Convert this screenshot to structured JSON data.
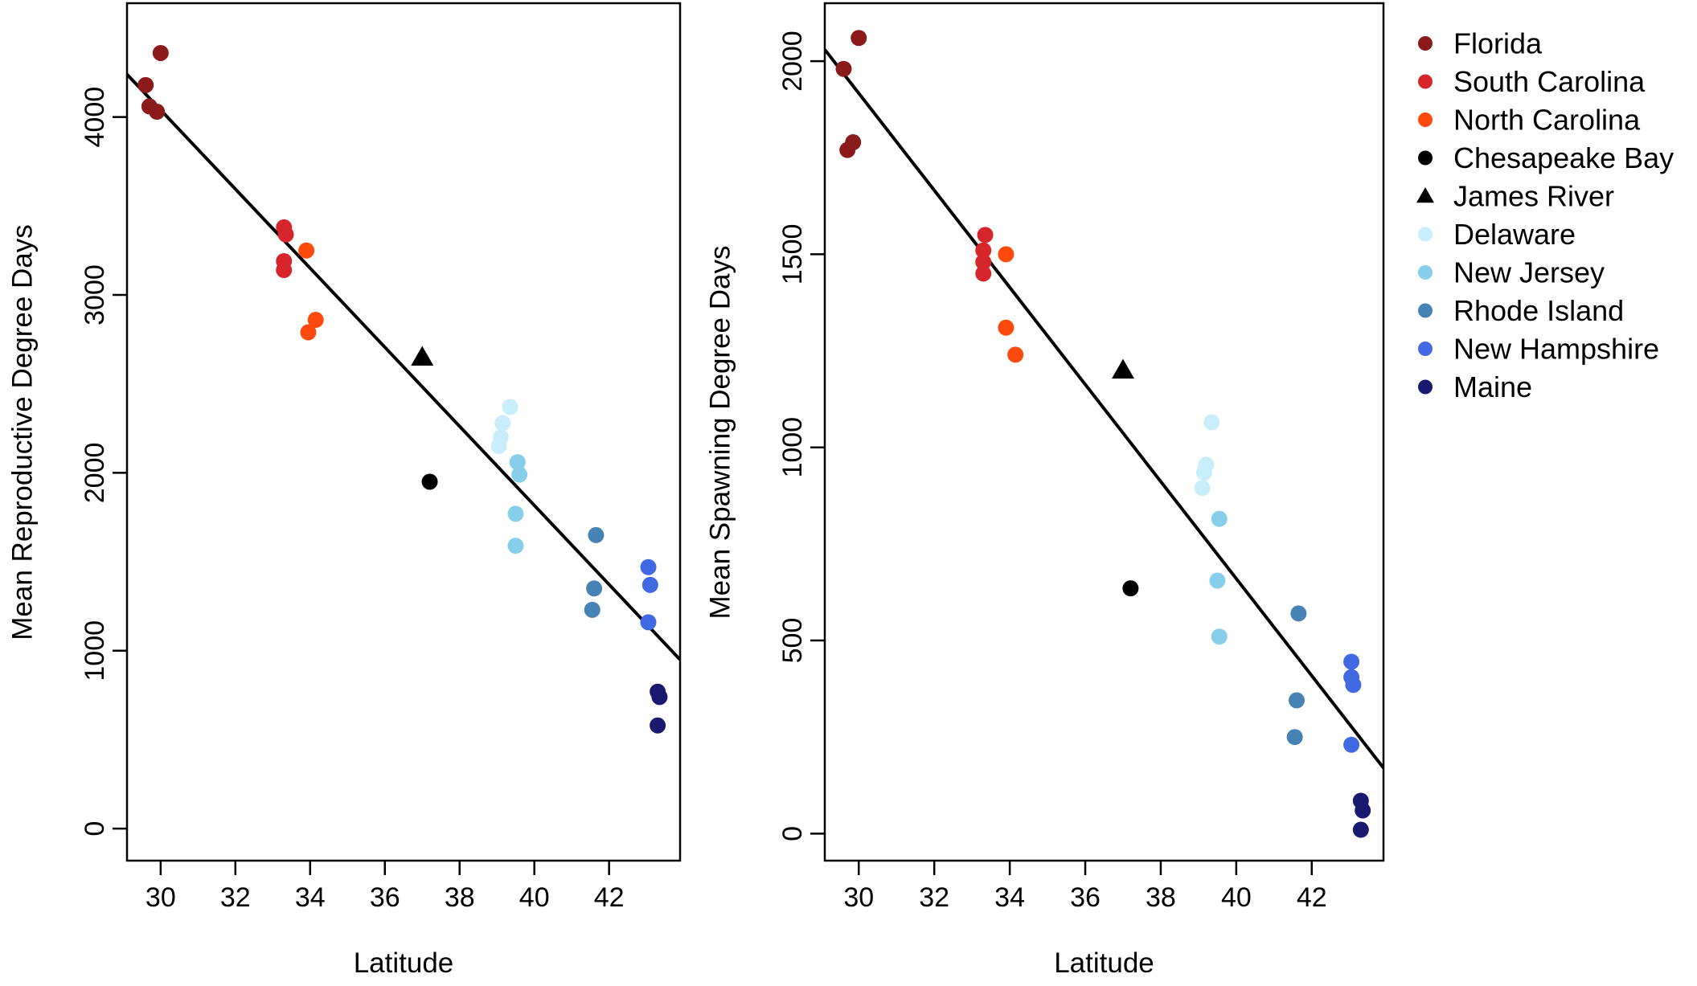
{
  "chart_data": [
    {
      "type": "scatter",
      "xlabel": "Latitude",
      "ylabel": "Mean Reproductive Degree Days",
      "xlim": [
        29.1,
        43.9
      ],
      "ylim": [
        -180,
        4640
      ],
      "xticks": [
        30,
        32,
        34,
        36,
        38,
        40,
        42
      ],
      "yticks": [
        0,
        1000,
        2000,
        3000,
        4000
      ],
      "fit_line": {
        "x": [
          29.1,
          43.9
        ],
        "y": [
          4240,
          950
        ]
      },
      "series": [
        {
          "name": "Florida",
          "marker": "circle",
          "points": [
            [
              29.6,
              4180
            ],
            [
              29.7,
              4060
            ],
            [
              29.9,
              4030
            ],
            [
              30.0,
              4360
            ]
          ]
        },
        {
          "name": "South Carolina",
          "marker": "circle",
          "points": [
            [
              33.3,
              3380
            ],
            [
              33.35,
              3340
            ],
            [
              33.3,
              3190
            ],
            [
              33.3,
              3140
            ]
          ]
        },
        {
          "name": "North Carolina",
          "marker": "circle",
          "points": [
            [
              33.9,
              3250
            ],
            [
              34.15,
              2860
            ],
            [
              33.95,
              2790
            ]
          ]
        },
        {
          "name": "Chesapeake Bay",
          "marker": "circle",
          "points": [
            [
              37.2,
              1950
            ]
          ]
        },
        {
          "name": "James River",
          "marker": "triangle",
          "points": [
            [
              37.0,
              2650
            ]
          ]
        },
        {
          "name": "Delaware",
          "marker": "circle",
          "points": [
            [
              39.35,
              2370
            ],
            [
              39.15,
              2280
            ],
            [
              39.1,
              2200
            ],
            [
              39.05,
              2150
            ]
          ]
        },
        {
          "name": "New Jersey",
          "marker": "circle",
          "points": [
            [
              39.55,
              2060
            ],
            [
              39.6,
              1990
            ],
            [
              39.5,
              1770
            ],
            [
              39.5,
              1590
            ]
          ]
        },
        {
          "name": "Rhode Island",
          "marker": "circle",
          "points": [
            [
              41.65,
              1650
            ],
            [
              41.6,
              1350
            ],
            [
              41.55,
              1230
            ]
          ]
        },
        {
          "name": "New Hampshire",
          "marker": "circle",
          "points": [
            [
              43.05,
              1470
            ],
            [
              43.1,
              1370
            ],
            [
              43.05,
              1160
            ]
          ]
        },
        {
          "name": "Maine",
          "marker": "circle",
          "points": [
            [
              43.3,
              770
            ],
            [
              43.35,
              740
            ],
            [
              43.3,
              580
            ]
          ]
        }
      ]
    },
    {
      "type": "scatter",
      "xlabel": "Latitude",
      "ylabel": "Mean Spawning Degree Days",
      "xlim": [
        29.1,
        43.9
      ],
      "ylim": [
        -70,
        2150
      ],
      "xticks": [
        30,
        32,
        34,
        36,
        38,
        40,
        42
      ],
      "yticks": [
        0,
        500,
        1000,
        1500,
        2000
      ],
      "fit_line": {
        "x": [
          29.1,
          43.9
        ],
        "y": [
          2030,
          170
        ]
      },
      "series": [
        {
          "name": "Florida",
          "marker": "circle",
          "points": [
            [
              29.6,
              1980
            ],
            [
              30.0,
              2060
            ],
            [
              29.7,
              1770
            ],
            [
              29.85,
              1790
            ]
          ]
        },
        {
          "name": "South Carolina",
          "marker": "circle",
          "points": [
            [
              33.35,
              1550
            ],
            [
              33.3,
              1510
            ],
            [
              33.3,
              1480
            ],
            [
              33.3,
              1450
            ]
          ]
        },
        {
          "name": "North Carolina",
          "marker": "circle",
          "points": [
            [
              33.9,
              1500
            ],
            [
              33.9,
              1310
            ],
            [
              34.15,
              1240
            ]
          ]
        },
        {
          "name": "Chesapeake Bay",
          "marker": "circle",
          "points": [
            [
              37.2,
              635
            ]
          ]
        },
        {
          "name": "James River",
          "marker": "triangle",
          "points": [
            [
              37.0,
              1200
            ]
          ]
        },
        {
          "name": "Delaware",
          "marker": "circle",
          "points": [
            [
              39.35,
              1065
            ],
            [
              39.2,
              955
            ],
            [
              39.15,
              935
            ],
            [
              39.1,
              895
            ]
          ]
        },
        {
          "name": "New Jersey",
          "marker": "circle",
          "points": [
            [
              39.55,
              815
            ],
            [
              39.5,
              655
            ],
            [
              39.55,
              510
            ]
          ]
        },
        {
          "name": "Rhode Island",
          "marker": "circle",
          "points": [
            [
              41.65,
              570
            ],
            [
              41.6,
              345
            ],
            [
              41.55,
              250
            ]
          ]
        },
        {
          "name": "New Hampshire",
          "marker": "circle",
          "points": [
            [
              43.05,
              445
            ],
            [
              43.05,
              405
            ],
            [
              43.1,
              385
            ],
            [
              43.05,
              230
            ]
          ]
        },
        {
          "name": "Maine",
          "marker": "circle",
          "points": [
            [
              43.3,
              85
            ],
            [
              43.35,
              60
            ],
            [
              43.3,
              10
            ]
          ]
        }
      ]
    }
  ],
  "legend": {
    "items": [
      {
        "label": "Florida",
        "color": "#8B1A1A",
        "marker": "circle"
      },
      {
        "label": "South Carolina",
        "color": "#D7262B",
        "marker": "circle"
      },
      {
        "label": "North Carolina",
        "color": "#FF4A0E",
        "marker": "circle"
      },
      {
        "label": "Chesapeake Bay",
        "color": "#000000",
        "marker": "circle"
      },
      {
        "label": "James River",
        "color": "#000000",
        "marker": "triangle"
      },
      {
        "label": "Delaware",
        "color": "#C8EEFB",
        "marker": "circle"
      },
      {
        "label": "New Jersey",
        "color": "#87CEEB",
        "marker": "circle"
      },
      {
        "label": "Rhode Island",
        "color": "#4682B4",
        "marker": "circle"
      },
      {
        "label": "New Hampshire",
        "color": "#4169E1",
        "marker": "circle"
      },
      {
        "label": "Maine",
        "color": "#191970",
        "marker": "circle"
      }
    ]
  }
}
